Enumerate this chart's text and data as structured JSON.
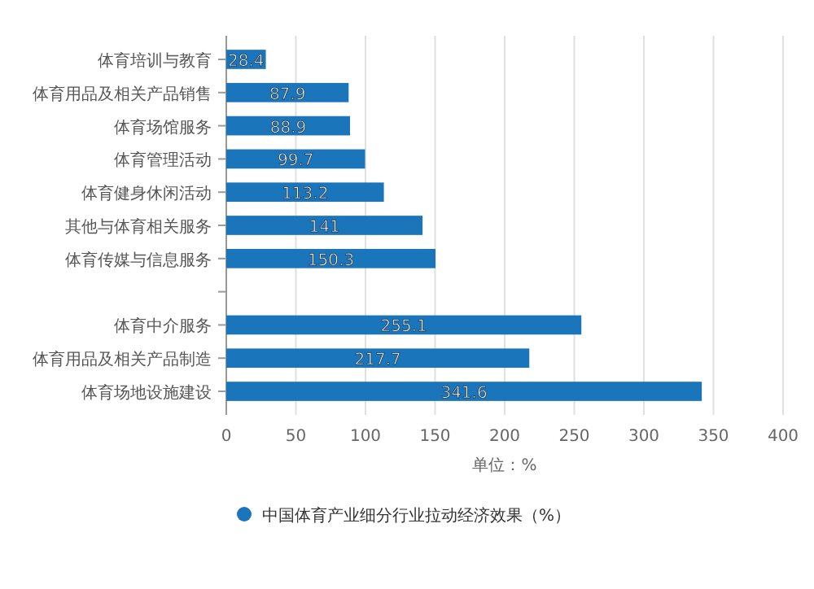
{
  "chart_data": {
    "type": "bar",
    "orientation": "horizontal",
    "xlabel": "单位：%",
    "categories": [
      "体育培训与教育",
      "体育用品及相关产品销售",
      "体育场馆服务",
      "体育管理活动",
      "体育健身休闲活动",
      "其他与体育相关服务",
      "体育传媒与信息服务",
      null,
      "体育中介服务",
      "体育用品及相关产品制造",
      "体育场地设施建设"
    ],
    "series": [
      {
        "name": "中国体育产业细分行业拉动经济效果（%）",
        "color": "#1a75bb",
        "values": [
          28.4,
          87.9,
          88.9,
          99.7,
          113.2,
          141,
          150.3,
          null,
          255.1,
          217.7,
          341.6
        ]
      }
    ],
    "xlim": [
      0,
      400
    ],
    "xticks": [
      0,
      50,
      100,
      150,
      200,
      250,
      300,
      350,
      400
    ],
    "grid": "x",
    "legend": "bottom",
    "data_labels": true
  }
}
